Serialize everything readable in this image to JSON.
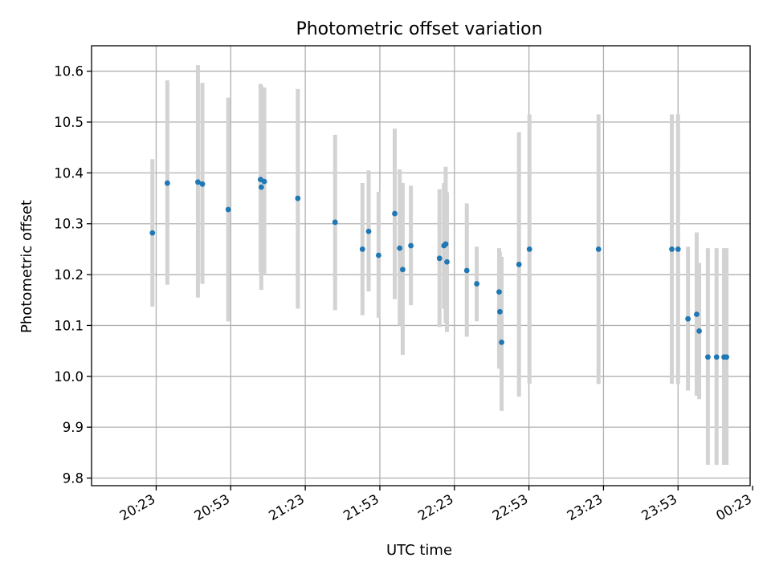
{
  "chart_data": {
    "type": "scatter",
    "title": "Photometric offset variation",
    "xlabel": "UTC time",
    "ylabel": "Photometric offset",
    "xlim_minutes": [
      1197,
      1462
    ],
    "ylim": [
      9.785,
      10.65
    ],
    "x_ticks": [
      {
        "label": "20:23",
        "minutes": 1223
      },
      {
        "label": "20:53",
        "minutes": 1253
      },
      {
        "label": "21:23",
        "minutes": 1283
      },
      {
        "label": "21:53",
        "minutes": 1313
      },
      {
        "label": "22:23",
        "minutes": 1343
      },
      {
        "label": "22:53",
        "minutes": 1373
      },
      {
        "label": "23:23",
        "minutes": 1403
      },
      {
        "label": "23:53",
        "minutes": 1433
      },
      {
        "label": "00:23",
        "minutes": 1463
      }
    ],
    "y_ticks": [
      "9.8",
      "9.9",
      "10.0",
      "10.1",
      "10.2",
      "10.3",
      "10.4",
      "10.5",
      "10.6"
    ],
    "grid": true,
    "colors": {
      "point": "#1f77b4",
      "errorbar": "#d3d3d3",
      "grid": "#b0b0b0"
    },
    "points": [
      {
        "t": 1221.5,
        "y": 10.282,
        "lo": 10.137,
        "hi": 10.427
      },
      {
        "t": 1227.5,
        "y": 10.38,
        "lo": 10.18,
        "hi": 10.582
      },
      {
        "t": 1239.8,
        "y": 10.382,
        "lo": 10.155,
        "hi": 10.612
      },
      {
        "t": 1241.6,
        "y": 10.378,
        "lo": 10.182,
        "hi": 10.577
      },
      {
        "t": 1252.0,
        "y": 10.328,
        "lo": 10.108,
        "hi": 10.548
      },
      {
        "t": 1265.0,
        "y": 10.387,
        "lo": 10.205,
        "hi": 10.575
      },
      {
        "t": 1265.3,
        "y": 10.372,
        "lo": 10.17,
        "hi": 10.572
      },
      {
        "t": 1266.5,
        "y": 10.383,
        "lo": 10.2,
        "hi": 10.568
      },
      {
        "t": 1280.0,
        "y": 10.35,
        "lo": 10.133,
        "hi": 10.565
      },
      {
        "t": 1295.0,
        "y": 10.303,
        "lo": 10.13,
        "hi": 10.475
      },
      {
        "t": 1306.0,
        "y": 10.25,
        "lo": 10.12,
        "hi": 10.38
      },
      {
        "t": 1308.5,
        "y": 10.285,
        "lo": 10.167,
        "hi": 10.405
      },
      {
        "t": 1312.5,
        "y": 10.238,
        "lo": 10.115,
        "hi": 10.363
      },
      {
        "t": 1319.0,
        "y": 10.32,
        "lo": 10.152,
        "hi": 10.487
      },
      {
        "t": 1321.0,
        "y": 10.252,
        "lo": 10.1,
        "hi": 10.407
      },
      {
        "t": 1322.2,
        "y": 10.21,
        "lo": 10.042,
        "hi": 10.38
      },
      {
        "t": 1325.5,
        "y": 10.257,
        "lo": 10.14,
        "hi": 10.375
      },
      {
        "t": 1337.0,
        "y": 10.232,
        "lo": 10.097,
        "hi": 10.368
      },
      {
        "t": 1338.8,
        "y": 10.257,
        "lo": 10.133,
        "hi": 10.38
      },
      {
        "t": 1339.5,
        "y": 10.26,
        "lo": 10.105,
        "hi": 10.412
      },
      {
        "t": 1340.0,
        "y": 10.225,
        "lo": 10.087,
        "hi": 10.362
      },
      {
        "t": 1348.0,
        "y": 10.208,
        "lo": 10.078,
        "hi": 10.34
      },
      {
        "t": 1352.0,
        "y": 10.182,
        "lo": 10.108,
        "hi": 10.255
      },
      {
        "t": 1361.0,
        "y": 10.166,
        "lo": 10.015,
        "hi": 10.252
      },
      {
        "t": 1361.3,
        "y": 10.127,
        "lo": 10.035,
        "hi": 10.245
      },
      {
        "t": 1362.0,
        "y": 10.067,
        "lo": 9.932,
        "hi": 10.235
      },
      {
        "t": 1369.0,
        "y": 10.22,
        "lo": 9.96,
        "hi": 10.48
      },
      {
        "t": 1373.2,
        "y": 10.25,
        "lo": 9.985,
        "hi": 10.515
      },
      {
        "t": 1401.0,
        "y": 10.25,
        "lo": 9.985,
        "hi": 10.515
      },
      {
        "t": 1430.5,
        "y": 10.25,
        "lo": 9.985,
        "hi": 10.515
      },
      {
        "t": 1433.0,
        "y": 10.25,
        "lo": 9.985,
        "hi": 10.515
      },
      {
        "t": 1437.0,
        "y": 10.113,
        "lo": 9.972,
        "hi": 10.255
      },
      {
        "t": 1440.5,
        "y": 10.122,
        "lo": 9.962,
        "hi": 10.283
      },
      {
        "t": 1441.5,
        "y": 10.089,
        "lo": 9.955,
        "hi": 10.223
      },
      {
        "t": 1445.0,
        "y": 10.038,
        "lo": 9.826,
        "hi": 10.252
      },
      {
        "t": 1448.5,
        "y": 10.038,
        "lo": 9.826,
        "hi": 10.252
      },
      {
        "t": 1451.5,
        "y": 10.038,
        "lo": 9.826,
        "hi": 10.252
      },
      {
        "t": 1452.5,
        "y": 10.038,
        "lo": 9.826,
        "hi": 10.252
      }
    ]
  }
}
